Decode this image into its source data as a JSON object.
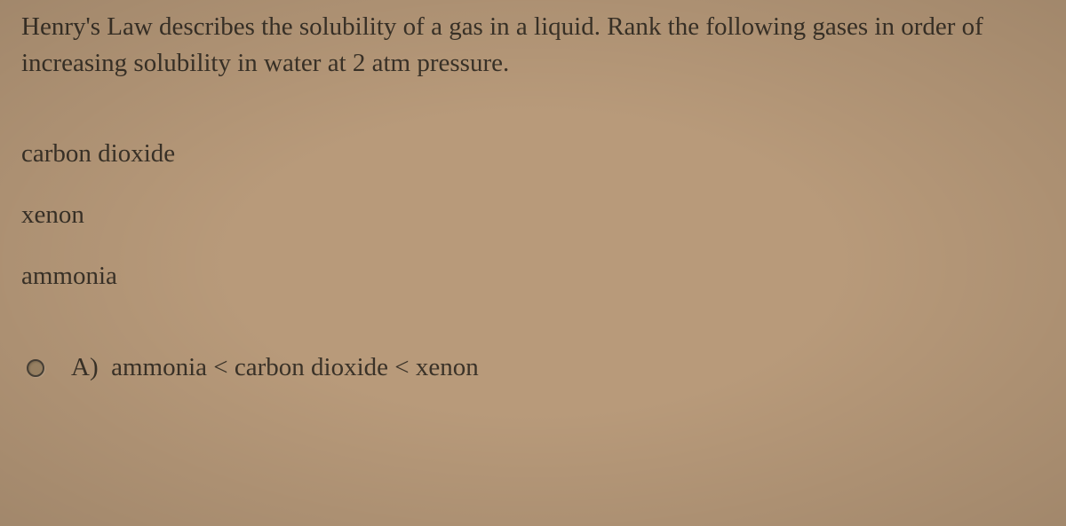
{
  "background_color": "#b89a7a",
  "text_color": "#3a3228",
  "font_family": "Times New Roman",
  "question": "Henry's Law describes the solubility of a gas in a liquid.  Rank the following gases in order of increasing solubility in water at 2 atm pressure.",
  "items": {
    "0": "carbon dioxide",
    "1": "xenon",
    "2": "ammonia"
  },
  "option": {
    "letter": "A)",
    "text": "ammonia < carbon dioxide < xenon"
  }
}
